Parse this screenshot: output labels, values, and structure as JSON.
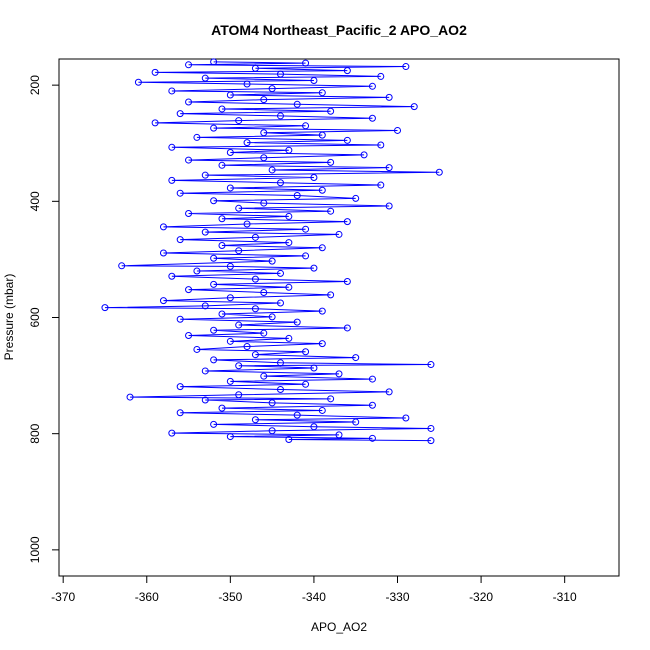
{
  "chart_data": {
    "type": "scatter",
    "title": "ATOM4 Northeast_Pacific_2 APO_AO2",
    "xlabel": "APO_AO2",
    "ylabel": "Pressure (mbar)",
    "xlim": [
      -370.5,
      -303.5
    ],
    "ylim": [
      1045,
      155
    ],
    "y_reversed": true,
    "x_ticks": [
      -370,
      -360,
      -350,
      -340,
      -330,
      -320,
      -310
    ],
    "y_ticks": [
      200,
      400,
      600,
      800,
      1000
    ],
    "grid": false,
    "legend": "none",
    "series": [
      {
        "color": "#0000ff",
        "marker": "open-circle",
        "connected": true,
        "points": [
          [
            -352,
            160
          ],
          [
            -341,
            162
          ],
          [
            -355,
            165
          ],
          [
            -329,
            168
          ],
          [
            -347,
            171
          ],
          [
            -336,
            175
          ],
          [
            -359,
            178
          ],
          [
            -344,
            181
          ],
          [
            -332,
            185
          ],
          [
            -353,
            188
          ],
          [
            -340,
            192
          ],
          [
            -361,
            195
          ],
          [
            -348,
            198
          ],
          [
            -333,
            202
          ],
          [
            -345,
            206
          ],
          [
            -357,
            210
          ],
          [
            -339,
            213
          ],
          [
            -350,
            217
          ],
          [
            -331,
            221
          ],
          [
            -346,
            225
          ],
          [
            -355,
            229
          ],
          [
            -342,
            233
          ],
          [
            -328,
            237
          ],
          [
            -351,
            241
          ],
          [
            -338,
            245
          ],
          [
            -356,
            249
          ],
          [
            -344,
            253
          ],
          [
            -333,
            257
          ],
          [
            -349,
            261
          ],
          [
            -359,
            265
          ],
          [
            -341,
            270
          ],
          [
            -352,
            274
          ],
          [
            -330,
            278
          ],
          [
            -346,
            282
          ],
          [
            -339,
            286
          ],
          [
            -354,
            290
          ],
          [
            -336,
            295
          ],
          [
            -348,
            299
          ],
          [
            -332,
            303
          ],
          [
            -357,
            307
          ],
          [
            -343,
            312
          ],
          [
            -350,
            316
          ],
          [
            -334,
            320
          ],
          [
            -346,
            325
          ],
          [
            -355,
            329
          ],
          [
            -338,
            333
          ],
          [
            -351,
            338
          ],
          [
            -331,
            342
          ],
          [
            -345,
            346
          ],
          [
            -325,
            350
          ],
          [
            -353,
            355
          ],
          [
            -340,
            359
          ],
          [
            -357,
            364
          ],
          [
            -344,
            368
          ],
          [
            -332,
            372
          ],
          [
            -350,
            377
          ],
          [
            -339,
            381
          ],
          [
            -356,
            386
          ],
          [
            -342,
            390
          ],
          [
            -335,
            395
          ],
          [
            -352,
            399
          ],
          [
            -346,
            403
          ],
          [
            -331,
            408
          ],
          [
            -349,
            412
          ],
          [
            -338,
            417
          ],
          [
            -355,
            421
          ],
          [
            -343,
            426
          ],
          [
            -351,
            430
          ],
          [
            -336,
            435
          ],
          [
            -348,
            439
          ],
          [
            -358,
            444
          ],
          [
            -341,
            448
          ],
          [
            -353,
            453
          ],
          [
            -337,
            457
          ],
          [
            -347,
            462
          ],
          [
            -356,
            466
          ],
          [
            -343,
            471
          ],
          [
            -351,
            476
          ],
          [
            -339,
            480
          ],
          [
            -349,
            485
          ],
          [
            -358,
            489
          ],
          [
            -341,
            494
          ],
          [
            -352,
            498
          ],
          [
            -345,
            503
          ],
          [
            -363,
            511
          ],
          [
            -350,
            512
          ],
          [
            -340,
            515
          ],
          [
            -354,
            520
          ],
          [
            -344,
            524
          ],
          [
            -357,
            529
          ],
          [
            -347,
            534
          ],
          [
            -336,
            538
          ],
          [
            -352,
            543
          ],
          [
            -343,
            548
          ],
          [
            -355,
            552
          ],
          [
            -346,
            557
          ],
          [
            -338,
            561
          ],
          [
            -350,
            566
          ],
          [
            -358,
            571
          ],
          [
            -344,
            575
          ],
          [
            -353,
            580
          ],
          [
            -365,
            583
          ],
          [
            -347,
            585
          ],
          [
            -339,
            589
          ],
          [
            -351,
            594
          ],
          [
            -345,
            599
          ],
          [
            -356,
            603
          ],
          [
            -342,
            608
          ],
          [
            -349,
            613
          ],
          [
            -336,
            618
          ],
          [
            -352,
            622
          ],
          [
            -346,
            627
          ],
          [
            -355,
            631
          ],
          [
            -343,
            636
          ],
          [
            -350,
            641
          ],
          [
            -339,
            645
          ],
          [
            -348,
            650
          ],
          [
            -354,
            655
          ],
          [
            -341,
            659
          ],
          [
            -347,
            664
          ],
          [
            -335,
            669
          ],
          [
            -352,
            673
          ],
          [
            -344,
            678
          ],
          [
            -326,
            681
          ],
          [
            -349,
            683
          ],
          [
            -340,
            687
          ],
          [
            -353,
            692
          ],
          [
            -337,
            697
          ],
          [
            -346,
            701
          ],
          [
            -333,
            706
          ],
          [
            -350,
            710
          ],
          [
            -341,
            715
          ],
          [
            -356,
            719
          ],
          [
            -344,
            724
          ],
          [
            -331,
            728
          ],
          [
            -349,
            733
          ],
          [
            -362,
            737
          ],
          [
            -338,
            740
          ],
          [
            -353,
            742
          ],
          [
            -345,
            747
          ],
          [
            -333,
            751
          ],
          [
            -351,
            756
          ],
          [
            -339,
            760
          ],
          [
            -356,
            764
          ],
          [
            -342,
            768
          ],
          [
            -329,
            773
          ],
          [
            -347,
            776
          ],
          [
            -335,
            780
          ],
          [
            -352,
            784
          ],
          [
            -340,
            788
          ],
          [
            -326,
            791
          ],
          [
            -345,
            795
          ],
          [
            -357,
            799
          ],
          [
            -337,
            802
          ],
          [
            -350,
            805
          ],
          [
            -333,
            808
          ],
          [
            -343,
            810
          ],
          [
            -326,
            812
          ]
        ]
      }
    ]
  }
}
